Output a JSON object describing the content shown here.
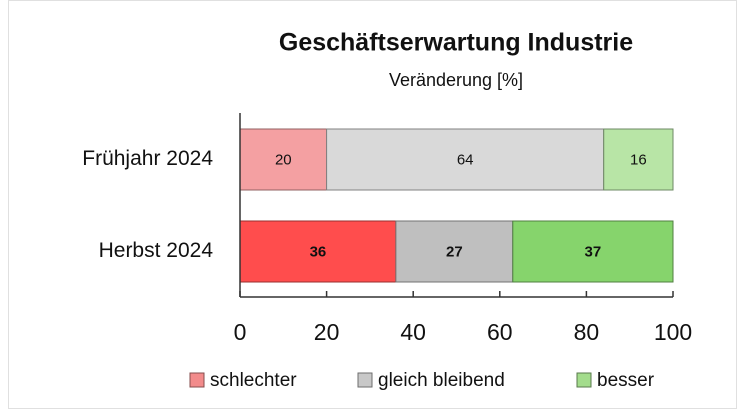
{
  "chart_data": {
    "type": "stacked-bar-horizontal",
    "title": "Geschäftserwartung Industrie",
    "subtitle": "Veränderung [%]",
    "categories": [
      "Frühjahr 2024",
      "Herbst 2024"
    ],
    "series": [
      {
        "name": "schlechter",
        "color": "#f28b8b",
        "colors": [
          "#f4a0a2",
          "#ff4d4d"
        ],
        "values": [
          20,
          36
        ]
      },
      {
        "name": "gleich bleibend",
        "color": "#c8c8c8",
        "colors": [
          "#d9d9d9",
          "#bfbfbf"
        ],
        "values": [
          64,
          27
        ]
      },
      {
        "name": "besser",
        "color": "#a3dc8c",
        "colors": [
          "#b8e5a6",
          "#86d46c"
        ],
        "values": [
          16,
          37
        ]
      }
    ],
    "xlim": [
      0,
      100
    ],
    "xticks": [
      0,
      20,
      40,
      60,
      80,
      100
    ],
    "legend": "bottom"
  }
}
